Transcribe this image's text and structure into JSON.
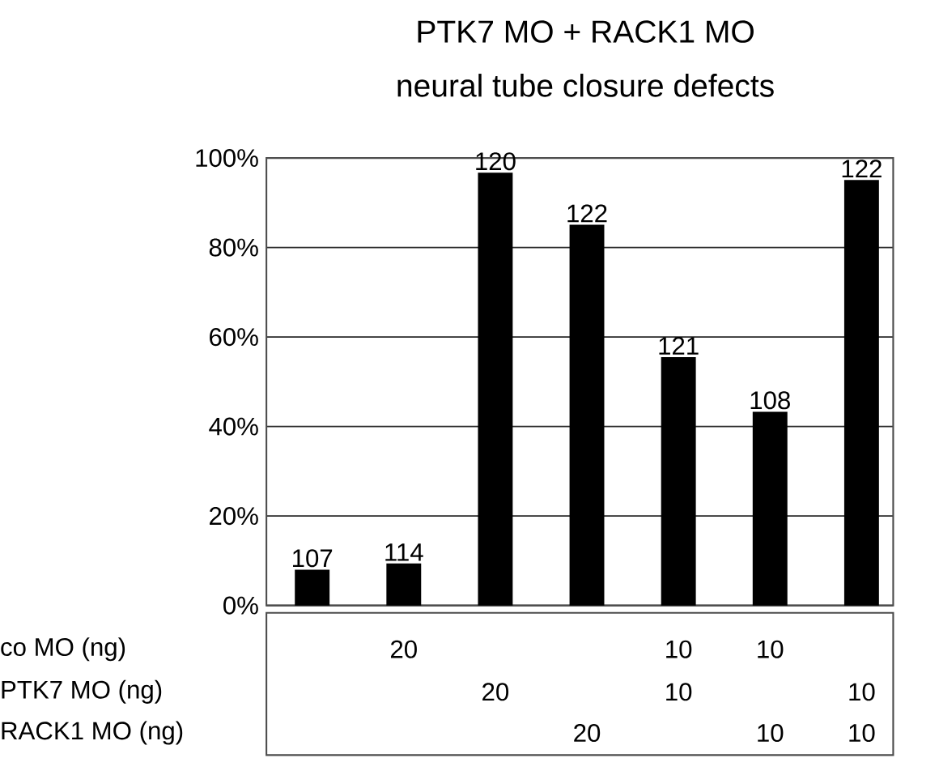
{
  "chart_data": {
    "type": "bar",
    "title": "PTK7 MO + RACK1 MO",
    "subtitle": "neural tube closure defects",
    "categories": [
      null,
      null,
      null,
      null,
      null,
      null,
      null
    ],
    "values": [
      8.0,
      9.4,
      96.7,
      85.1,
      55.5,
      43.3,
      95.1
    ],
    "color": "#000000",
    "ylim": [
      0,
      100
    ],
    "yticks": [
      {
        "value": 0,
        "label": "0%"
      },
      {
        "value": 20,
        "label": "20%"
      },
      {
        "value": 40,
        "label": "40%"
      },
      {
        "value": 60,
        "label": "60%"
      },
      {
        "value": 80,
        "label": "80%"
      },
      {
        "value": 100,
        "label": "100%"
      }
    ],
    "grid": "y",
    "annotations": [
      "107",
      "114",
      "120",
      "122",
      "121",
      "108",
      "122",
      "co MO (ng)",
      "PTK7 MO (ng)",
      "RACK1 MO (ng)",
      null,
      null,
      null,
      "20",
      null,
      null,
      null,
      "20",
      null,
      null,
      null,
      "20",
      "10",
      "10",
      null,
      "10",
      null,
      "10",
      null,
      "10",
      "10"
    ]
  }
}
